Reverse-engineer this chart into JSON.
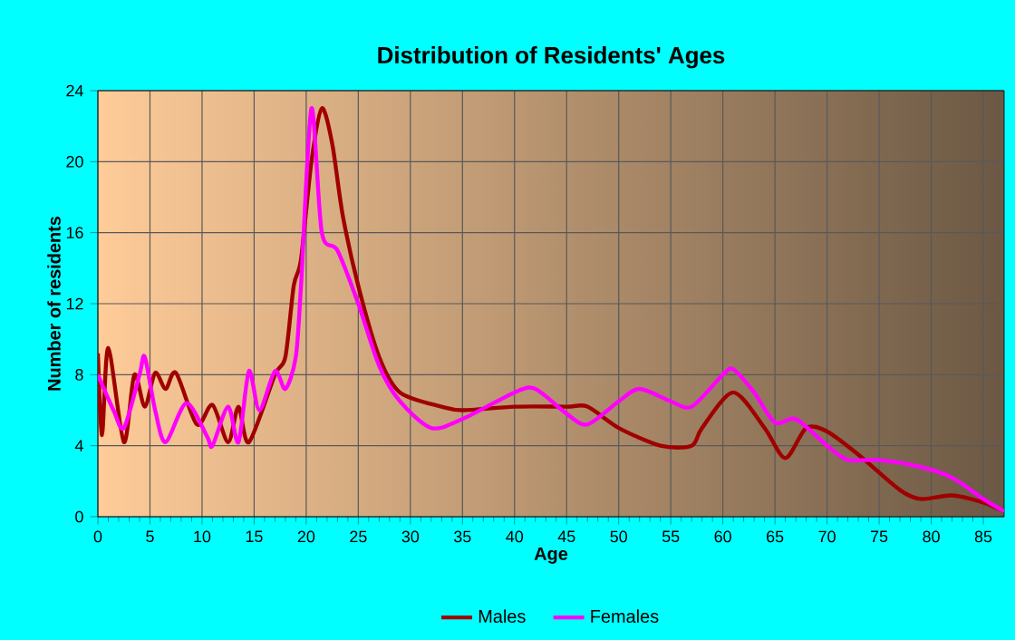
{
  "chart_data": {
    "type": "line",
    "title": "Distribution of Residents' Ages",
    "xlabel": "Age",
    "ylabel": "Number of residents",
    "xlim": [
      0,
      87
    ],
    "ylim": [
      0,
      24
    ],
    "xticks": [
      0,
      5,
      10,
      15,
      20,
      25,
      30,
      35,
      40,
      45,
      50,
      55,
      60,
      65,
      70,
      75,
      80,
      85
    ],
    "yticks": [
      0,
      4,
      8,
      12,
      16,
      20,
      24
    ],
    "grid": true,
    "legend": "bottom",
    "marker": "none",
    "line_style": "solid",
    "series": [
      {
        "name": "Males",
        "color": "#a00000",
        "x": [
          0,
          0.4,
          1,
          2.5,
          3.5,
          4.5,
          5.5,
          6.5,
          7.5,
          9.5,
          11,
          12.5,
          13.5,
          14.5,
          17,
          18,
          18.8,
          19.5,
          20.5,
          21.5,
          22.5,
          23.5,
          25,
          27,
          29,
          33,
          35,
          40,
          45,
          47,
          50,
          54,
          57,
          58,
          61,
          64,
          66,
          68,
          70,
          73,
          77,
          79,
          82,
          85,
          87
        ],
        "values": [
          9.2,
          4.6,
          9.5,
          4.2,
          8,
          6.2,
          8.1,
          7.2,
          8.1,
          5.2,
          6.3,
          4.2,
          6.2,
          4.2,
          8,
          9,
          13,
          14.5,
          20,
          23,
          21,
          17,
          13,
          9,
          7,
          6.2,
          6,
          6.2,
          6.2,
          6.2,
          5,
          4,
          4,
          5,
          7,
          5,
          3.3,
          5,
          4.8,
          3.5,
          1.5,
          1,
          1.2,
          0.8,
          0.3
        ]
      },
      {
        "name": "Females",
        "color": "#ff00ff",
        "x": [
          0,
          1.5,
          2.5,
          4,
          4.5,
          5.5,
          6.5,
          8.5,
          10.5,
          11,
          12.5,
          13.5,
          14.5,
          15.5,
          17,
          18,
          19,
          19.5,
          20.5,
          21.5,
          23,
          25,
          27,
          29,
          32,
          35,
          40,
          42,
          45,
          47,
          50,
          52,
          55,
          57,
          60,
          61,
          63,
          65,
          67,
          70,
          72,
          75,
          79,
          82,
          85,
          87
        ],
        "values": [
          8,
          6,
          5,
          8,
          9,
          6,
          4.2,
          6.4,
          4.5,
          4,
          6.2,
          4.2,
          8.2,
          6,
          8.2,
          7.2,
          9,
          13,
          23,
          16,
          15,
          12,
          8.5,
          6.5,
          5,
          5.5,
          7,
          7.2,
          5.8,
          5.2,
          6.5,
          7.2,
          6.5,
          6.2,
          8,
          8.3,
          7,
          5.3,
          5.5,
          4,
          3.2,
          3.2,
          2.8,
          2.2,
          1,
          0.3
        ]
      }
    ]
  }
}
